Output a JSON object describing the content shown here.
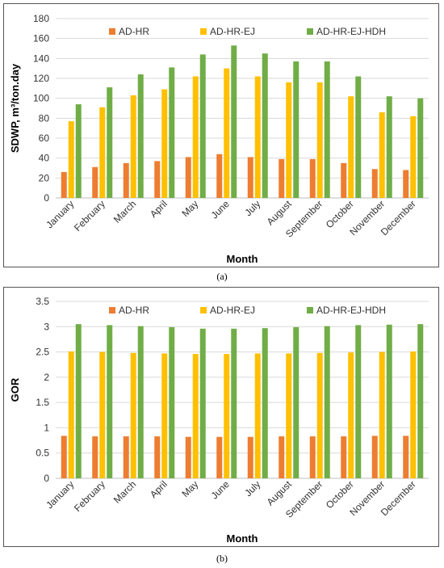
{
  "chart_data": [
    {
      "type": "bar",
      "panel_label": "(a)",
      "xlabel": "Month",
      "ylabel": "SDWP, m³/ton.day",
      "ylim": [
        0,
        180
      ],
      "yticks": [
        0,
        20,
        40,
        60,
        80,
        100,
        120,
        140,
        160,
        180
      ],
      "grid": true,
      "legend": "top-center",
      "categories": [
        "January",
        "February",
        "March",
        "April",
        "May",
        "June",
        "July",
        "August",
        "September",
        "October",
        "November",
        "December"
      ],
      "series": [
        {
          "name": "AD-HR",
          "color": "#ED7D31",
          "values": [
            26,
            31,
            35,
            37,
            41,
            44,
            41,
            39,
            39,
            35,
            29,
            28
          ]
        },
        {
          "name": "AD-HR-EJ",
          "color": "#FFC000",
          "values": [
            77,
            91,
            103,
            109,
            122,
            130,
            122,
            116,
            116,
            102,
            86,
            82
          ]
        },
        {
          "name": "AD-HR-EJ-HDH",
          "color": "#70AD47",
          "values": [
            94,
            111,
            124,
            131,
            144,
            153,
            145,
            137,
            137,
            122,
            102,
            100
          ]
        }
      ]
    },
    {
      "type": "bar",
      "panel_label": "(b)",
      "xlabel": "Month",
      "ylabel": "GOR",
      "ylim": [
        0,
        3.5
      ],
      "yticks": [
        0,
        0.5,
        1,
        1.5,
        2,
        2.5,
        3,
        3.5
      ],
      "grid": true,
      "legend": "top-center",
      "categories": [
        "January",
        "February",
        "March",
        "April",
        "May",
        "June",
        "July",
        "August",
        "September",
        "October",
        "November",
        "December"
      ],
      "series": [
        {
          "name": "AD-HR",
          "color": "#ED7D31",
          "values": [
            0.84,
            0.83,
            0.83,
            0.83,
            0.82,
            0.82,
            0.82,
            0.83,
            0.83,
            0.83,
            0.84,
            0.84
          ]
        },
        {
          "name": "AD-HR-EJ",
          "color": "#FFC000",
          "values": [
            2.51,
            2.5,
            2.48,
            2.47,
            2.46,
            2.46,
            2.47,
            2.47,
            2.48,
            2.49,
            2.5,
            2.51
          ]
        },
        {
          "name": "AD-HR-EJ-HDH",
          "color": "#70AD47",
          "values": [
            3.05,
            3.03,
            3.01,
            2.99,
            2.96,
            2.96,
            2.97,
            2.99,
            3.01,
            3.03,
            3.04,
            3.05
          ]
        }
      ]
    }
  ]
}
